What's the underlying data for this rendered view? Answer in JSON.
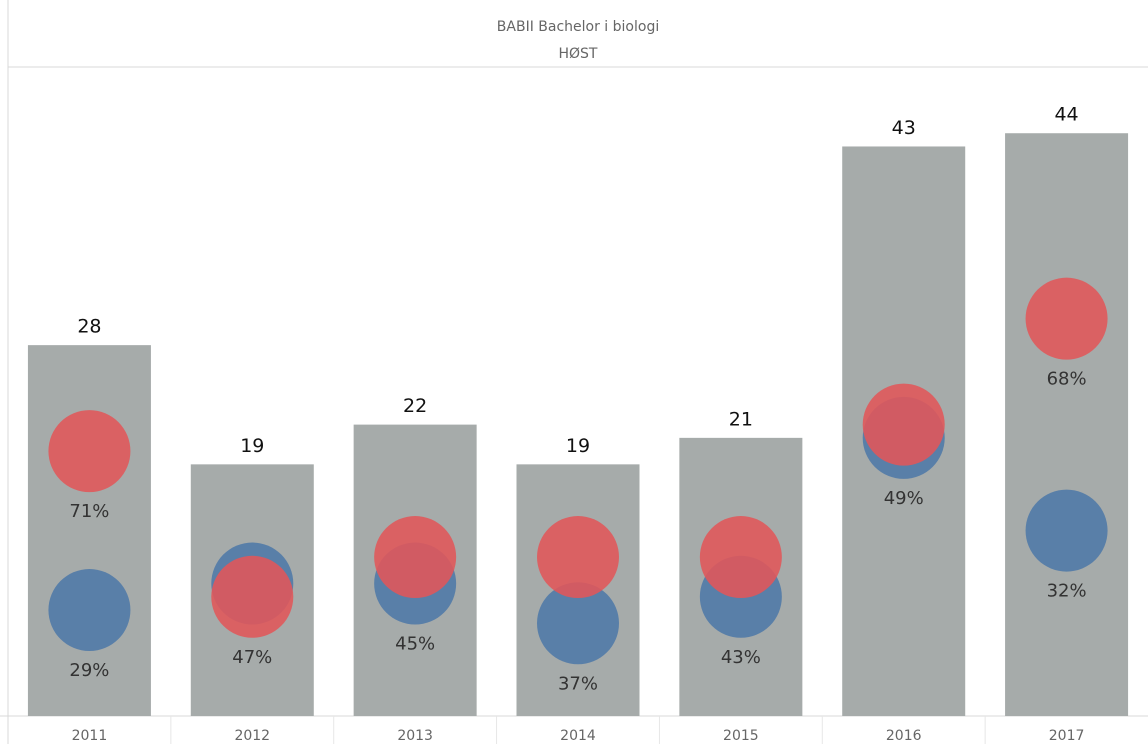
{
  "chart_data": {
    "type": "bar",
    "title": "BABII Bachelor i biologi",
    "subtitle": "HØST",
    "categories": [
      "2011",
      "2012",
      "2013",
      "2014",
      "2015",
      "2016",
      "2017"
    ],
    "values": [
      28,
      19,
      22,
      19,
      21,
      43,
      44
    ],
    "color": "#a6abaa",
    "ylim": [
      0,
      49
    ],
    "series": [
      {
        "color": "#4e79a7",
        "values": [
          8,
          10,
          10,
          7,
          9,
          21,
          14
        ],
        "shares": [
          29,
          null,
          45,
          37,
          43,
          49,
          32
        ],
        "share_labels": [
          "29%",
          null,
          "45%",
          "37%",
          "43%",
          "49%",
          "32%"
        ]
      },
      {
        "color": "#e15759",
        "values": [
          20,
          9,
          12,
          12,
          12,
          22,
          30
        ],
        "shares": [
          71,
          47,
          null,
          null,
          null,
          null,
          68
        ],
        "share_labels": [
          "71%",
          "47%",
          null,
          null,
          null,
          null,
          "68%"
        ]
      }
    ]
  }
}
